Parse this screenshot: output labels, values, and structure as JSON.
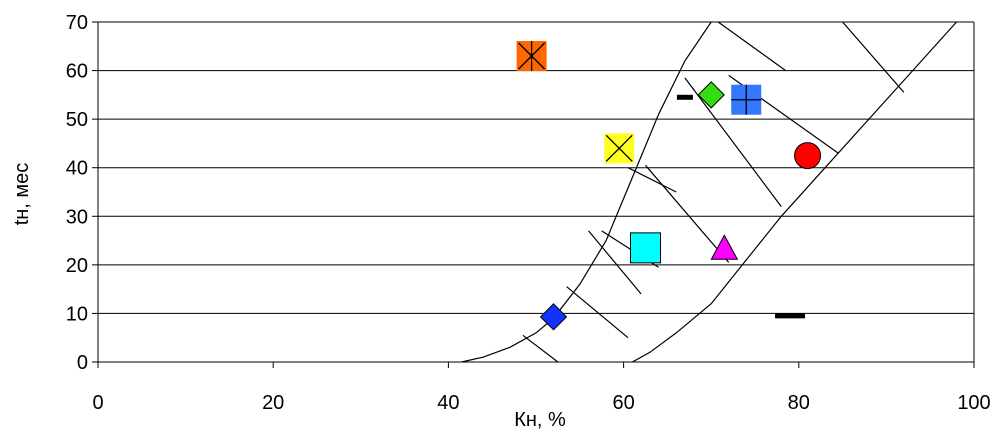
{
  "chart_data": {
    "type": "scatter",
    "title": "",
    "xlabel": "Кн, %",
    "ylabel": "tн, мес",
    "xlim": [
      0,
      100
    ],
    "ylim": [
      0,
      70
    ],
    "x_ticks": [
      "0",
      "20",
      "40",
      "60",
      "80",
      "100"
    ],
    "y_ticks": [
      "0",
      "10",
      "20",
      "30",
      "40",
      "50",
      "60",
      "70"
    ],
    "grid": "horizontal",
    "legend": "none",
    "series": [
      {
        "marker": "asterisk-square",
        "color": "#ff6600",
        "points": [
          {
            "x": 49.5,
            "y": 63
          }
        ]
      },
      {
        "marker": "diamond",
        "color": "#33dd11",
        "points": [
          {
            "x": 70,
            "y": 55
          }
        ]
      },
      {
        "marker": "plus-square",
        "color": "#3377ff",
        "points": [
          {
            "x": 74,
            "y": 54
          }
        ]
      },
      {
        "marker": "dash",
        "color": "#000000",
        "points": [
          {
            "x": 67,
            "y": 54.5
          },
          {
            "x": 79,
            "y": 9.5
          }
        ]
      },
      {
        "marker": "x-square",
        "color": "#ffff22",
        "points": [
          {
            "x": 59.5,
            "y": 44
          }
        ]
      },
      {
        "marker": "circle",
        "color": "#ff0000",
        "points": [
          {
            "x": 81,
            "y": 42.5
          }
        ]
      },
      {
        "marker": "square",
        "color": "#00ffff",
        "points": [
          {
            "x": 62.5,
            "y": 23.5
          }
        ]
      },
      {
        "marker": "triangle",
        "color": "#ff00ff",
        "points": [
          {
            "x": 71.5,
            "y": 23
          }
        ]
      },
      {
        "marker": "diamond",
        "color": "#1133ff",
        "points": [
          {
            "x": 52,
            "y": 9.3
          }
        ]
      }
    ],
    "region": {
      "left_boundary": [
        [
          41.5,
          0
        ],
        [
          44,
          1
        ],
        [
          47,
          3
        ],
        [
          50,
          6
        ],
        [
          52,
          9
        ],
        [
          55,
          16
        ],
        [
          58,
          25
        ],
        [
          61,
          38
        ],
        [
          64,
          51
        ],
        [
          67,
          62
        ],
        [
          70,
          70
        ]
      ],
      "right_boundary": [
        [
          61,
          0
        ],
        [
          63,
          2
        ],
        [
          66,
          6
        ],
        [
          70,
          12
        ],
        [
          74,
          21
        ],
        [
          78,
          30
        ],
        [
          83,
          40
        ],
        [
          88,
          50
        ],
        [
          93,
          60
        ],
        [
          98,
          70
        ]
      ],
      "hatch_lines": [
        [
          [
            48.5,
            5.5
          ],
          [
            52.5,
            0
          ]
        ],
        [
          [
            53.5,
            15.5
          ],
          [
            60.5,
            5
          ]
        ],
        [
          [
            57.5,
            27
          ],
          [
            64,
            19.5
          ]
        ],
        [
          [
            56,
            27
          ],
          [
            62,
            14
          ]
        ],
        [
          [
            60.5,
            40
          ],
          [
            66,
            35
          ]
        ],
        [
          [
            62.5,
            40.5
          ],
          [
            72,
            20.5
          ]
        ],
        [
          [
            70.8,
            70
          ],
          [
            78.5,
            60
          ]
        ],
        [
          [
            67,
            58.5
          ],
          [
            78,
            32
          ]
        ],
        [
          [
            72,
            59
          ],
          [
            84.5,
            43
          ]
        ],
        [
          [
            85,
            70
          ],
          [
            92,
            55.5
          ]
        ]
      ]
    }
  }
}
